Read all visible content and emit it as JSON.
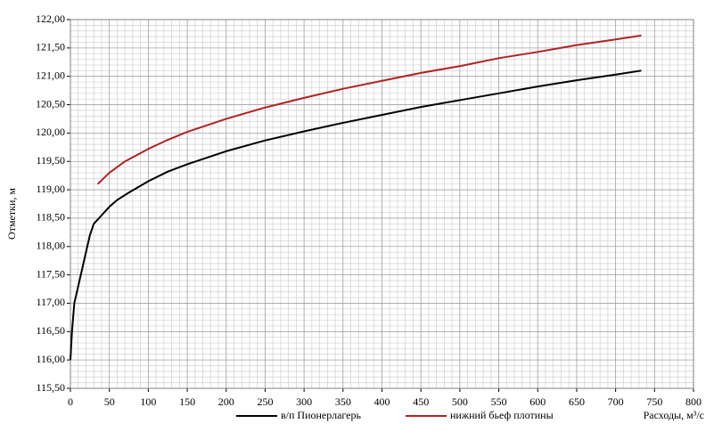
{
  "chart_data": {
    "type": "line",
    "x_label": "Расходы, м³/с",
    "y_label": "Отметки, м",
    "xlim": [
      0,
      800
    ],
    "xticks": [
      0,
      50,
      100,
      150,
      200,
      250,
      300,
      350,
      400,
      450,
      500,
      550,
      600,
      650,
      700,
      750,
      800
    ],
    "ylim": [
      115.5,
      122
    ],
    "yticks": [
      {
        "value": 115.5,
        "label": "115,50"
      },
      {
        "value": 116,
        "label": "116,00"
      },
      {
        "value": 116.5,
        "label": "116,50"
      },
      {
        "value": 117,
        "label": "117,00"
      },
      {
        "value": 117.5,
        "label": "117,50"
      },
      {
        "value": 118,
        "label": "118,00"
      },
      {
        "value": 118.5,
        "label": "118,50"
      },
      {
        "value": 119,
        "label": "119,00"
      },
      {
        "value": 119.5,
        "label": "119,50"
      },
      {
        "value": 120,
        "label": "120,00"
      },
      {
        "value": 120.5,
        "label": "120,50"
      },
      {
        "value": 121,
        "label": "121,00"
      },
      {
        "value": 121.5,
        "label": "121,50"
      },
      {
        "value": 122,
        "label": "122,00"
      }
    ],
    "grid": true,
    "minor_grid": true,
    "legend": "bottom",
    "series": [
      {
        "name": "в/п Пионерлагерь",
        "color": "#000000",
        "x": [
          0,
          2,
          5,
          10,
          15,
          20,
          25,
          30,
          40,
          50,
          60,
          75,
          100,
          125,
          150,
          200,
          250,
          300,
          350,
          400,
          450,
          500,
          550,
          600,
          650,
          700,
          733
        ],
        "values": [
          116.0,
          116.5,
          117.0,
          117.3,
          117.6,
          117.9,
          118.2,
          118.4,
          118.55,
          118.7,
          118.82,
          118.95,
          119.15,
          119.32,
          119.45,
          119.68,
          119.87,
          120.03,
          120.18,
          120.32,
          120.46,
          120.58,
          120.7,
          120.82,
          120.93,
          121.03,
          121.1
        ]
      },
      {
        "name": "нижний бьеф плотины",
        "color": "#b22222",
        "x": [
          35,
          50,
          70,
          100,
          125,
          150,
          200,
          250,
          300,
          350,
          400,
          450,
          500,
          550,
          600,
          650,
          700,
          733
        ],
        "values": [
          119.1,
          119.3,
          119.5,
          119.72,
          119.88,
          120.02,
          120.25,
          120.45,
          120.62,
          120.78,
          120.92,
          121.06,
          121.18,
          121.32,
          121.43,
          121.55,
          121.65,
          121.72
        ]
      }
    ]
  }
}
